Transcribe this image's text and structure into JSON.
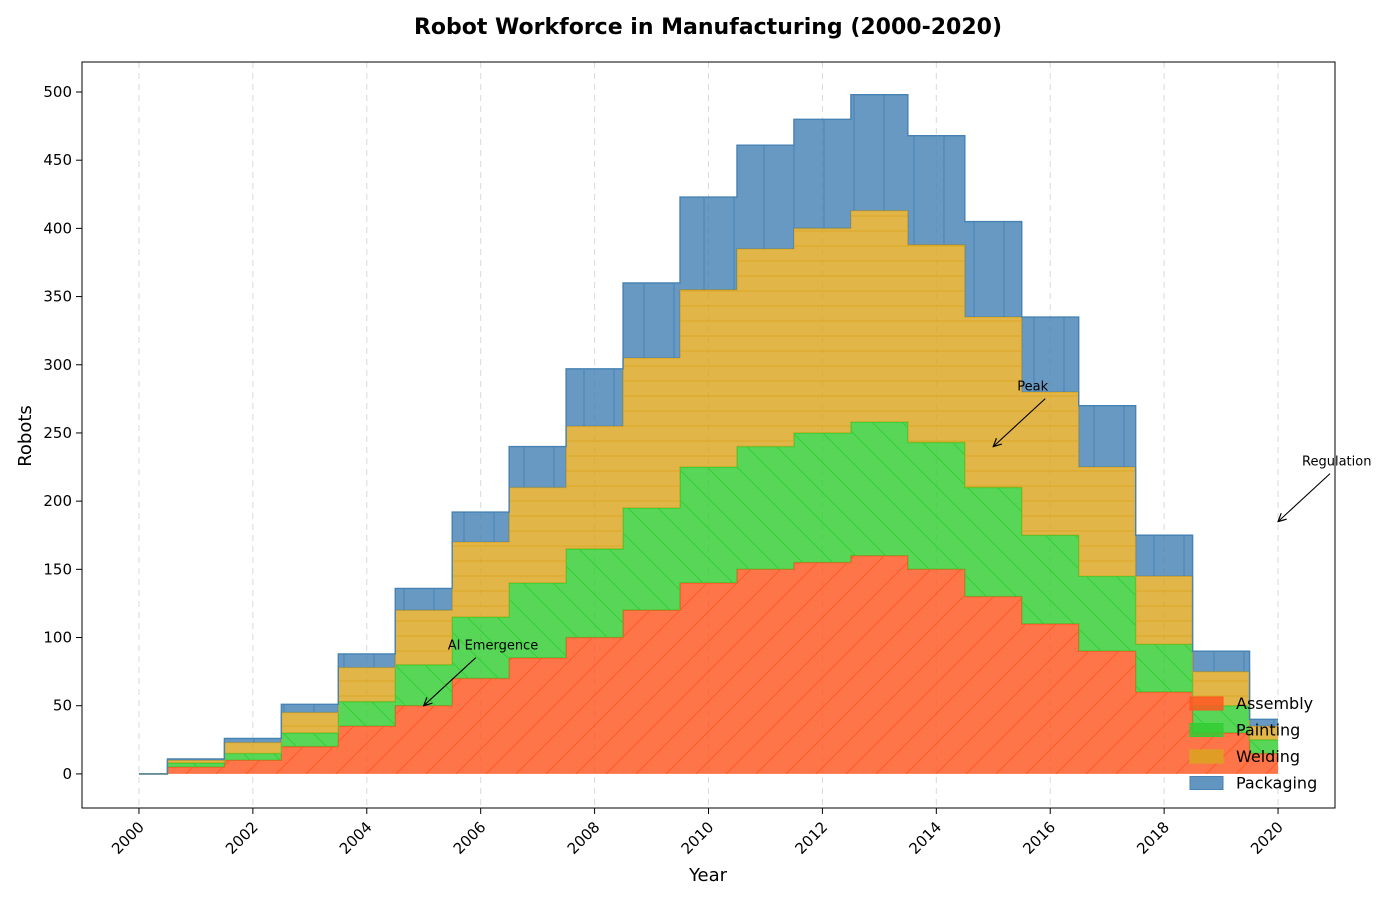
{
  "chart_data": {
    "type": "area",
    "step": "mid",
    "stacked": true,
    "title": "Robot Workforce in Manufacturing (2000-2020)",
    "xlabel": "Year",
    "ylabel": "Robots",
    "x": [
      2000,
      2001,
      2002,
      2003,
      2004,
      2005,
      2006,
      2007,
      2008,
      2009,
      2010,
      2011,
      2012,
      2013,
      2014,
      2015,
      2016,
      2017,
      2018,
      2019,
      2020
    ],
    "xlim": [
      1999,
      2021
    ],
    "ylim": [
      -25,
      522
    ],
    "xticks": [
      2000,
      2002,
      2004,
      2006,
      2008,
      2010,
      2012,
      2014,
      2016,
      2018,
      2020
    ],
    "yticks": [
      0,
      50,
      100,
      150,
      200,
      250,
      300,
      350,
      400,
      450,
      500
    ],
    "grid": "x-dashed",
    "legend_position": "lower-right",
    "series": [
      {
        "name": "Assembly",
        "color": "#FF5722",
        "hatch": "diagonal-up",
        "values": [
          0,
          5,
          10,
          20,
          35,
          50,
          70,
          85,
          100,
          120,
          140,
          150,
          155,
          160,
          150,
          130,
          110,
          90,
          60,
          30,
          15
        ]
      },
      {
        "name": "Painting",
        "color": "#32CD32",
        "hatch": "diagonal-down",
        "values": [
          0,
          3,
          5,
          10,
          18,
          30,
          45,
          55,
          65,
          75,
          85,
          90,
          95,
          98,
          93,
          80,
          65,
          55,
          35,
          20,
          10
        ]
      },
      {
        "name": "Welding",
        "color": "#DAA520",
        "hatch": "horizontal",
        "values": [
          0,
          2,
          8,
          15,
          25,
          40,
          55,
          70,
          90,
          110,
          130,
          145,
          150,
          155,
          145,
          125,
          105,
          80,
          50,
          25,
          10
        ]
      },
      {
        "name": "Packaging",
        "color": "#4682B4",
        "hatch": "vertical",
        "values": [
          0,
          1,
          3,
          6,
          10,
          16,
          22,
          30,
          42,
          55,
          68,
          76,
          80,
          85,
          80,
          70,
          55,
          45,
          30,
          15,
          5
        ]
      }
    ],
    "annotations": [
      {
        "text": "AI Emergence",
        "x": 2005,
        "y": 50
      },
      {
        "text": "Peak",
        "x": 2015,
        "y": 240
      },
      {
        "text": "Regulation",
        "x": 2020,
        "y": 185
      }
    ]
  }
}
